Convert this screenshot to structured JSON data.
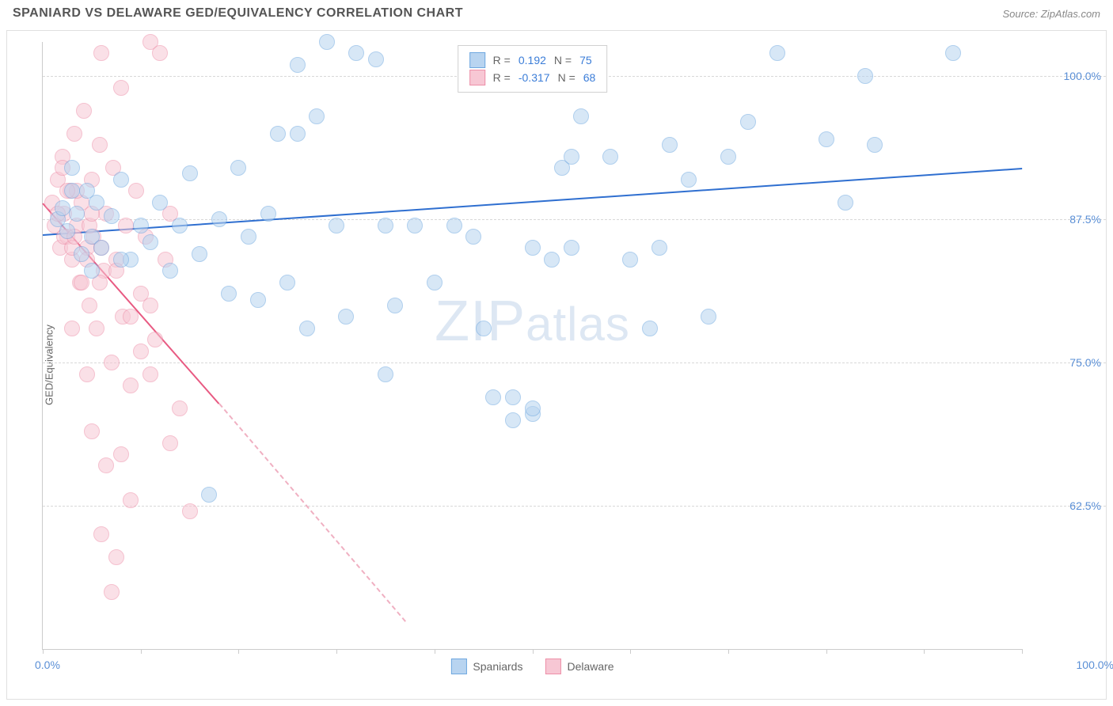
{
  "header": {
    "title": "SPANIARD VS DELAWARE GED/EQUIVALENCY CORRELATION CHART",
    "source": "Source: ZipAtlas.com"
  },
  "chart": {
    "type": "scatter",
    "ylabel": "GED/Equivalency",
    "xlim": [
      0,
      100
    ],
    "ylim": [
      50,
      103
    ],
    "background_color": "#ffffff",
    "grid_color": "#d8d8d8",
    "axis_color": "#cccccc",
    "tick_label_color": "#5a8fd6",
    "y_ticks": [
      {
        "v": 62.5,
        "label": "62.5%"
      },
      {
        "v": 75.0,
        "label": "75.0%"
      },
      {
        "v": 87.5,
        "label": "87.5%"
      },
      {
        "v": 100.0,
        "label": "100.0%"
      }
    ],
    "x_major_ticks": [
      0,
      50,
      100
    ],
    "x_minor_ticks": [
      10,
      20,
      30,
      40,
      60,
      70,
      80,
      90
    ],
    "x_tick_labels": {
      "left": "0.0%",
      "right": "100.0%"
    },
    "watermark": {
      "pre": "ZIP",
      "post": "atlas",
      "color": "#dde7f3"
    },
    "series": [
      {
        "name": "Spaniards",
        "color_fill": "#b8d4f0",
        "color_stroke": "#6fa8e0",
        "marker_radius": 10,
        "fill_opacity": 0.55,
        "R": "0.192",
        "N": "75",
        "trend": {
          "x1": 0,
          "y1": 86.2,
          "x2": 100,
          "y2": 92.0,
          "color": "#2f6fd0",
          "width": 2
        },
        "points": [
          [
            1.5,
            87.5
          ],
          [
            2,
            88.5
          ],
          [
            2.5,
            86.5
          ],
          [
            3,
            92
          ],
          [
            3.5,
            88
          ],
          [
            4,
            84.5
          ],
          [
            4.5,
            90
          ],
          [
            5,
            86
          ],
          [
            5.5,
            89
          ],
          [
            6,
            85
          ],
          [
            7,
            87.8
          ],
          [
            8,
            91
          ],
          [
            9,
            84
          ],
          [
            10,
            87
          ],
          [
            11,
            85.5
          ],
          [
            12,
            89
          ],
          [
            13,
            83
          ],
          [
            14,
            87
          ],
          [
            15,
            91.5
          ],
          [
            16,
            84.5
          ],
          [
            17,
            63.5
          ],
          [
            18,
            87.5
          ],
          [
            19,
            81
          ],
          [
            20,
            92
          ],
          [
            21,
            86
          ],
          [
            22,
            80.5
          ],
          [
            23,
            88
          ],
          [
            24,
            95
          ],
          [
            25,
            82
          ],
          [
            26,
            101
          ],
          [
            27,
            78
          ],
          [
            28,
            96.5
          ],
          [
            29,
            103
          ],
          [
            30,
            87
          ],
          [
            31,
            79
          ],
          [
            32,
            102
          ],
          [
            34,
            101.5
          ],
          [
            35,
            87
          ],
          [
            36,
            80
          ],
          [
            38,
            87
          ],
          [
            40,
            82
          ],
          [
            42,
            87
          ],
          [
            44,
            86
          ],
          [
            45,
            78
          ],
          [
            46,
            72
          ],
          [
            48,
            70
          ],
          [
            50,
            85
          ],
          [
            52,
            84
          ],
          [
            53,
            92
          ],
          [
            55,
            96.5
          ],
          [
            48,
            72
          ],
          [
            50,
            70.5
          ],
          [
            54,
            85
          ],
          [
            58,
            93
          ],
          [
            60,
            84
          ],
          [
            62,
            78
          ],
          [
            64,
            94
          ],
          [
            66,
            91
          ],
          [
            68,
            79
          ],
          [
            70,
            93
          ],
          [
            72,
            96
          ],
          [
            75,
            102
          ],
          [
            80,
            94.5
          ],
          [
            82,
            89
          ],
          [
            84,
            100
          ],
          [
            93,
            102
          ],
          [
            85,
            94
          ],
          [
            63,
            85
          ],
          [
            54,
            93
          ],
          [
            50,
            71
          ],
          [
            35,
            74
          ],
          [
            26,
            95
          ],
          [
            8,
            84
          ],
          [
            5,
            83
          ],
          [
            3,
            90
          ]
        ]
      },
      {
        "name": "Delaware",
        "color_fill": "#f7c7d4",
        "color_stroke": "#ed8fa8",
        "marker_radius": 10,
        "fill_opacity": 0.55,
        "R": "-0.317",
        "N": "68",
        "trend_solid": {
          "x1": 0,
          "y1": 89.0,
          "x2": 18,
          "y2": 71.5,
          "color": "#e85a82",
          "width": 2
        },
        "trend_dash": {
          "x1": 18,
          "y1": 71.5,
          "x2": 37,
          "y2": 52.5,
          "color": "#f0b0c2",
          "width": 2
        },
        "points": [
          [
            1,
            89
          ],
          [
            1.2,
            87
          ],
          [
            1.5,
            91
          ],
          [
            1.8,
            85
          ],
          [
            2,
            93
          ],
          [
            2.2,
            88
          ],
          [
            2.5,
            86
          ],
          [
            2.8,
            90
          ],
          [
            3,
            84
          ],
          [
            3.2,
            95
          ],
          [
            3.5,
            87
          ],
          [
            3.8,
            82
          ],
          [
            4,
            89
          ],
          [
            4.2,
            97
          ],
          [
            4.5,
            85
          ],
          [
            4.8,
            80
          ],
          [
            5,
            91
          ],
          [
            5.2,
            86
          ],
          [
            5.5,
            78
          ],
          [
            5.8,
            94
          ],
          [
            6,
            102
          ],
          [
            6.2,
            83
          ],
          [
            6.5,
            88
          ],
          [
            7,
            75
          ],
          [
            7.2,
            92
          ],
          [
            7.5,
            84
          ],
          [
            8,
            99
          ],
          [
            8.2,
            79
          ],
          [
            8.5,
            87
          ],
          [
            9,
            73
          ],
          [
            9.5,
            90
          ],
          [
            10,
            81
          ],
          [
            10.5,
            86
          ],
          [
            11,
            103
          ],
          [
            11.5,
            77
          ],
          [
            12,
            102
          ],
          [
            12.5,
            84
          ],
          [
            13,
            88
          ],
          [
            14,
            71
          ],
          [
            6,
            60
          ],
          [
            7,
            55
          ],
          [
            7.5,
            58
          ],
          [
            6.5,
            66
          ],
          [
            5,
            69
          ],
          [
            4.5,
            74
          ],
          [
            8,
            67
          ],
          [
            3,
            78
          ],
          [
            4,
            82
          ],
          [
            9,
            63
          ],
          [
            10,
            76
          ],
          [
            11,
            80
          ],
          [
            2,
            92
          ],
          [
            1.5,
            88
          ],
          [
            2.2,
            86
          ],
          [
            3.5,
            90
          ],
          [
            4.8,
            87
          ],
          [
            6,
            85
          ],
          [
            7.5,
            83
          ],
          [
            9,
            79
          ],
          [
            11,
            74
          ],
          [
            13,
            68
          ],
          [
            15,
            62
          ],
          [
            3,
            85
          ],
          [
            5,
            88
          ],
          [
            2.5,
            90
          ],
          [
            3.2,
            86
          ],
          [
            4.5,
            84
          ],
          [
            5.8,
            82
          ]
        ]
      }
    ],
    "legend_stats": {
      "r_label": "R =",
      "n_label": "N =",
      "val_color": "#3b7dd8"
    }
  }
}
